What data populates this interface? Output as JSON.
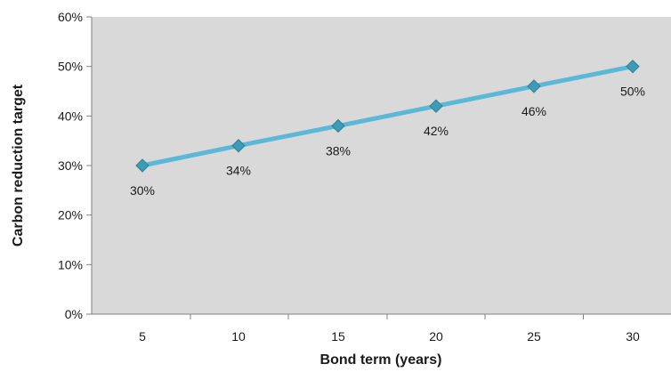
{
  "chart_data": {
    "type": "line",
    "xlabel": "Bond term (years)",
    "ylabel": "Carbon reduction target",
    "categories": [
      "5",
      "10",
      "15",
      "20",
      "25",
      "30"
    ],
    "series": [
      {
        "values": [
          30,
          34,
          38,
          42,
          46,
          50
        ]
      }
    ],
    "data_labels": [
      "30%",
      "34%",
      "38%",
      "42%",
      "46%",
      "50%"
    ],
    "ylim": [
      0,
      60
    ],
    "yticks": [
      "0%",
      "10%",
      "20%",
      "30%",
      "40%",
      "50%",
      "60%"
    ],
    "grid": false,
    "legend": "none",
    "colors": {
      "plot_area": "#d9d9d9",
      "line": "#5bb8d6",
      "marker_fill": "#3e9bb5",
      "marker_stroke": "#2d7f96",
      "axis": "#808080"
    }
  }
}
